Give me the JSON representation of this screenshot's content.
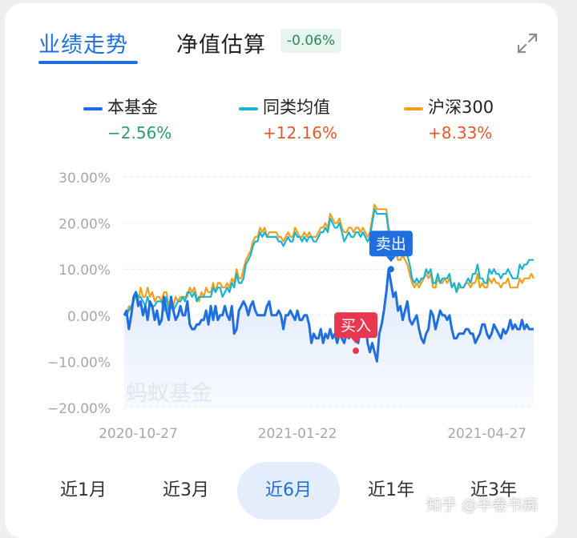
{
  "tabs": {
    "performance": "业绩走势",
    "estimate": "净值估算",
    "estimate_change": "-0.06%"
  },
  "icons": {
    "expand": "expand-arrows-icon"
  },
  "legend": [
    {
      "name": "本基金",
      "value": "−2.56%",
      "color": "#1f6fe0",
      "value_color": "#2a9d6c"
    },
    {
      "name": "同类均值",
      "value": "+12.16%",
      "color": "#19b4d2",
      "value_color": "#e05a2b"
    },
    {
      "name": "沪深300",
      "value": "+8.33%",
      "color": "#f0a020",
      "value_color": "#e05a2b"
    }
  ],
  "periods": [
    "近1月",
    "近3月",
    "近6月",
    "近1年",
    "近3年"
  ],
  "active_period": "近6月",
  "chart_watermark": "蚂蚁基金",
  "page_watermark": "知乎 @半卷书痴",
  "chart_data": {
    "type": "line",
    "ylim": [
      -20,
      30
    ],
    "y_ticks": [
      "30.00%",
      "20.00%",
      "10.00%",
      "0.00%",
      "−10.00%",
      "−20.00%"
    ],
    "x_ticks": [
      "2020-10-27",
      "2021-01-22",
      "2021-04-27"
    ],
    "x_tick_index": [
      6,
      74,
      155
    ],
    "grid": true,
    "n_points": 176,
    "annotations": [
      {
        "label": "买入",
        "index": 99,
        "value": -7.7,
        "color": "#e8384f"
      },
      {
        "label": "卖出",
        "index": 114,
        "value": 10.0,
        "color": "#1f6fe0"
      }
    ],
    "series": [
      {
        "name": "本基金",
        "color": "#1f6fe0",
        "values": [
          0,
          1,
          -3,
          0,
          4,
          5,
          2,
          3,
          0,
          2,
          -1,
          3,
          2,
          -1,
          1,
          -2,
          -1,
          4,
          1,
          -1,
          4,
          1,
          -1,
          0,
          2,
          0,
          0,
          3,
          -2,
          -3,
          -3,
          -2,
          -2,
          -1,
          -1,
          1,
          -2,
          2,
          -1,
          2,
          -1,
          0,
          0,
          2,
          0,
          -1,
          2,
          -4,
          -3,
          1,
          2,
          3,
          2,
          0,
          2,
          3,
          1,
          0,
          0,
          0,
          0,
          2,
          3,
          0,
          0,
          0,
          1,
          0,
          -3,
          0,
          0,
          1,
          0,
          -1,
          1,
          -1,
          -1,
          0,
          0,
          -2,
          -6,
          -4,
          -5,
          -5,
          -3,
          -6,
          -4,
          -5,
          -3,
          -5,
          -4,
          -6,
          -4,
          -5,
          -6,
          -4,
          -5,
          0,
          -5,
          -5,
          -6,
          -2,
          -3,
          -1,
          -6,
          -8,
          -6,
          -8,
          -10,
          -4,
          -2,
          1,
          5,
          10,
          7,
          4,
          5,
          1,
          2,
          -1,
          1,
          3,
          -1,
          -2,
          -1,
          0,
          -3,
          -5,
          -6,
          -4,
          -3,
          1,
          0,
          -3,
          -1,
          1,
          0,
          0,
          -1,
          0,
          -3,
          -5,
          -5,
          -4,
          -4,
          -4,
          -3,
          -3,
          -4,
          -4,
          -6,
          -5,
          -4,
          -2,
          -2,
          -4,
          -5,
          -4,
          -2,
          -3,
          -4,
          -5,
          -3,
          -4,
          -3,
          -1,
          -3,
          -2,
          -3,
          -3,
          -1,
          -3,
          -2,
          -3,
          -3,
          -3
        ]
      },
      {
        "name": "同类均值",
        "color": "#19b4d2",
        "values": [
          0,
          0,
          1,
          2,
          3,
          5,
          4,
          4,
          3,
          2,
          4,
          2,
          2,
          2,
          3,
          3,
          3,
          1,
          4,
          1,
          2,
          1,
          2,
          3,
          3,
          4,
          3,
          5,
          5,
          4,
          5,
          3,
          4,
          4,
          4,
          4,
          4,
          4,
          6,
          5,
          6,
          6,
          4,
          5,
          6,
          5,
          7,
          6,
          9,
          7,
          7,
          8,
          11,
          12,
          13,
          15,
          16,
          16,
          18,
          17,
          18,
          17,
          17,
          17,
          17,
          17,
          16,
          16,
          15,
          16,
          17,
          16,
          16,
          18,
          17,
          17,
          16,
          17,
          16,
          17,
          17,
          16,
          16,
          17,
          18,
          18,
          19,
          18,
          21,
          20,
          19,
          19,
          20,
          18,
          16,
          17,
          18,
          17,
          17,
          18,
          18,
          17,
          18,
          17,
          16,
          17,
          20,
          23,
          22,
          22,
          22,
          22,
          22,
          18,
          17,
          17,
          14,
          13,
          14,
          15,
          14,
          13,
          11,
          8,
          7,
          8,
          7,
          8,
          8,
          10,
          9,
          10,
          7,
          7,
          9,
          7,
          8,
          8,
          8,
          9,
          6,
          7,
          5,
          7,
          6,
          6,
          7,
          8,
          7,
          9,
          9,
          11,
          8,
          8,
          7,
          7,
          10,
          9,
          10,
          9,
          9,
          8,
          9,
          9,
          10,
          9,
          8,
          8,
          8,
          11,
          10,
          11,
          11,
          12,
          12,
          12
        ]
      },
      {
        "name": "沪深300",
        "color": "#f0a020",
        "values": [
          0,
          0,
          2,
          1,
          3,
          5,
          3,
          6,
          4,
          4,
          6,
          4,
          5,
          3,
          4,
          4,
          3,
          5,
          5,
          2,
          4,
          2,
          4,
          3,
          4,
          4,
          4,
          4,
          6,
          5,
          6,
          4,
          3,
          5,
          4,
          6,
          5,
          5,
          7,
          5,
          7,
          7,
          6,
          6,
          7,
          6,
          8,
          7,
          10,
          8,
          8,
          10,
          12,
          13,
          14,
          16,
          17,
          17,
          19,
          18,
          19,
          17,
          18,
          18,
          18,
          18,
          17,
          17,
          16,
          17,
          18,
          17,
          17,
          19,
          18,
          17,
          17,
          18,
          17,
          18,
          17,
          17,
          17,
          18,
          19,
          19,
          20,
          19,
          22,
          21,
          20,
          20,
          21,
          19,
          18,
          18,
          19,
          19,
          18,
          19,
          19,
          18,
          19,
          18,
          17,
          18,
          21,
          24,
          23,
          23,
          23,
          23,
          23,
          19,
          17,
          17,
          14,
          12,
          12,
          13,
          12,
          11,
          9,
          7,
          6,
          7,
          6,
          7,
          8,
          9,
          8,
          9,
          6,
          6,
          8,
          7,
          7,
          8,
          7,
          8,
          6,
          7,
          5,
          6,
          6,
          6,
          7,
          7,
          6,
          7,
          7,
          9,
          6,
          7,
          6,
          6,
          8,
          7,
          8,
          7,
          7,
          6,
          7,
          7,
          8,
          6,
          6,
          6,
          6,
          8,
          7,
          8,
          8,
          8,
          9,
          8
        ]
      }
    ]
  }
}
